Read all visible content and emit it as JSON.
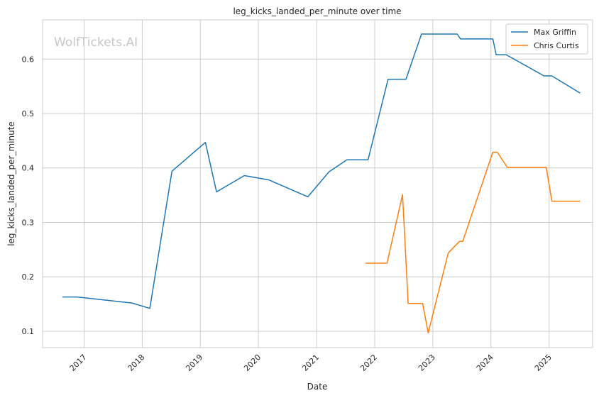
{
  "chart_data": {
    "type": "line",
    "title": "leg_kicks_landed_per_minute over time",
    "xlabel": "Date",
    "ylabel": "leg_kicks_landed_per_minute",
    "watermark": "WolfTickets.AI",
    "xlim": [
      "2016-04-15",
      "2025-10-01"
    ],
    "ylim": [
      0.07,
      0.672
    ],
    "x_ticks": [
      "2017-01-01",
      "2018-01-01",
      "2019-01-01",
      "2020-01-01",
      "2021-01-01",
      "2022-01-01",
      "2023-01-01",
      "2024-01-01",
      "2025-01-01"
    ],
    "x_tick_labels": [
      "2017",
      "2018",
      "2019",
      "2020",
      "2021",
      "2022",
      "2023",
      "2024",
      "2025"
    ],
    "y_ticks": [
      0.1,
      0.2,
      0.3,
      0.4,
      0.5,
      0.6
    ],
    "y_tick_labels": [
      "0.1",
      "0.2",
      "0.3",
      "0.4",
      "0.5",
      "0.6"
    ],
    "grid": true,
    "legend_position": "top-right",
    "series": [
      {
        "name": "Max Griffin",
        "color": "#1f77b4",
        "points": [
          [
            "2016-08-20",
            0.163
          ],
          [
            "2016-11-19",
            0.163
          ],
          [
            "2017-10-28",
            0.152
          ],
          [
            "2018-02-18",
            0.142
          ],
          [
            "2018-07-07",
            0.394
          ],
          [
            "2019-02-02",
            0.447
          ],
          [
            "2019-04-13",
            0.356
          ],
          [
            "2019-10-05",
            0.386
          ],
          [
            "2020-03-07",
            0.378
          ],
          [
            "2020-11-07",
            0.347
          ],
          [
            "2021-03-20",
            0.393
          ],
          [
            "2021-07-10",
            0.415
          ],
          [
            "2021-11-20",
            0.415
          ],
          [
            "2022-03-26",
            0.563
          ],
          [
            "2022-07-16",
            0.563
          ],
          [
            "2022-10-22",
            0.646
          ],
          [
            "2023-06-03",
            0.646
          ],
          [
            "2023-06-24",
            0.637
          ],
          [
            "2024-01-13",
            0.637
          ],
          [
            "2024-02-03",
            0.608
          ],
          [
            "2024-04-06",
            0.608
          ],
          [
            "2024-11-30",
            0.569
          ],
          [
            "2025-01-18",
            0.569
          ],
          [
            "2025-07-12",
            0.538
          ]
        ]
      },
      {
        "name": "Chris Curtis",
        "color": "#ff7f0e",
        "points": [
          [
            "2021-11-06",
            0.225
          ],
          [
            "2022-03-19",
            0.225
          ],
          [
            "2022-06-25",
            0.351
          ],
          [
            "2022-07-30",
            0.151
          ],
          [
            "2022-10-29",
            0.151
          ],
          [
            "2022-12-03",
            0.097
          ],
          [
            "2023-04-08",
            0.244
          ],
          [
            "2023-06-17",
            0.265
          ],
          [
            "2023-07-08",
            0.265
          ],
          [
            "2024-01-13",
            0.429
          ],
          [
            "2024-02-10",
            0.429
          ],
          [
            "2024-04-13",
            0.401
          ],
          [
            "2024-12-14",
            0.401
          ],
          [
            "2025-01-18",
            0.339
          ],
          [
            "2025-07-12",
            0.339
          ]
        ]
      }
    ]
  }
}
